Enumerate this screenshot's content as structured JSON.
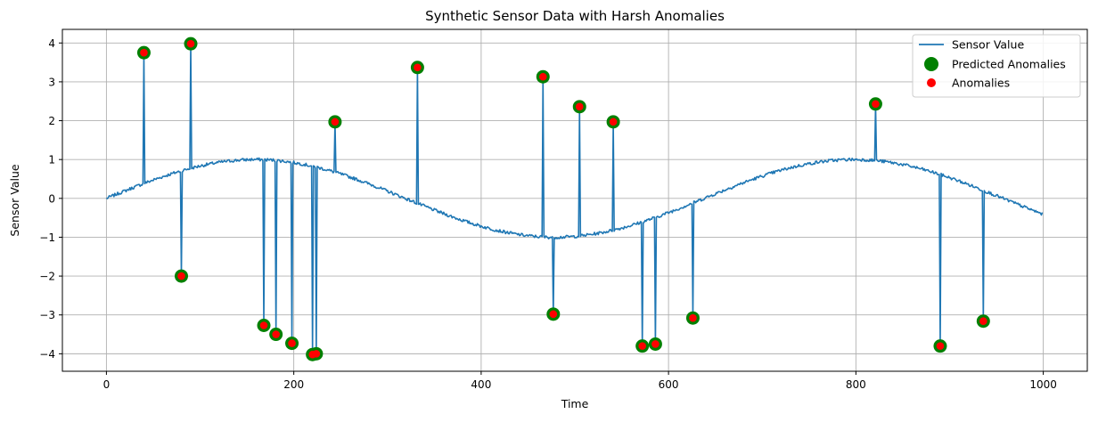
{
  "chart_data": {
    "type": "line",
    "title": "Synthetic Sensor Data with Harsh Anomalies",
    "xlabel": "Time",
    "ylabel": "Sensor Value",
    "xlim": [
      -47,
      1047
    ],
    "ylim": [
      -4.45,
      4.35
    ],
    "xticks": [
      0,
      200,
      400,
      600,
      800,
      1000
    ],
    "yticks": [
      -4,
      -3,
      -2,
      -1,
      0,
      1,
      2,
      3,
      4
    ],
    "grid": true,
    "legend_position": "top-right",
    "colors": {
      "line": "#1f77b4",
      "predicted": "#008000",
      "anomaly": "#ff0000",
      "grid": "#b0b0b0"
    },
    "series": [
      {
        "name": "Sensor Value",
        "kind": "line",
        "baseline": "sinusoid",
        "period": 638,
        "amplitude": 1.0,
        "noise": 0.04,
        "n_points": 1000
      },
      {
        "name": "Predicted Anomalies",
        "kind": "scatter",
        "points": [
          [
            40,
            3.75
          ],
          [
            80,
            -2.0
          ],
          [
            90,
            3.98
          ],
          [
            168,
            -3.27
          ],
          [
            181,
            -3.5
          ],
          [
            198,
            -3.73
          ],
          [
            220,
            -4.02
          ],
          [
            224,
            -4.0
          ],
          [
            244,
            1.97
          ],
          [
            332,
            3.37
          ],
          [
            466,
            3.13
          ],
          [
            477,
            -2.98
          ],
          [
            505,
            2.36
          ],
          [
            541,
            1.97
          ],
          [
            572,
            -3.8
          ],
          [
            586,
            -3.75
          ],
          [
            626,
            -3.08
          ],
          [
            821,
            2.43
          ],
          [
            890,
            -3.8
          ],
          [
            936,
            -3.16
          ]
        ]
      },
      {
        "name": "Anomalies",
        "kind": "scatter",
        "points": [
          [
            40,
            3.75
          ],
          [
            80,
            -2.0
          ],
          [
            90,
            3.98
          ],
          [
            168,
            -3.27
          ],
          [
            181,
            -3.5
          ],
          [
            198,
            -3.73
          ],
          [
            220,
            -4.02
          ],
          [
            224,
            -4.0
          ],
          [
            244,
            1.97
          ],
          [
            332,
            3.37
          ],
          [
            466,
            3.13
          ],
          [
            477,
            -2.98
          ],
          [
            505,
            2.36
          ],
          [
            541,
            1.97
          ],
          [
            572,
            -3.8
          ],
          [
            586,
            -3.75
          ],
          [
            626,
            -3.08
          ],
          [
            821,
            2.43
          ],
          [
            890,
            -3.8
          ],
          [
            936,
            -3.16
          ]
        ]
      }
    ]
  }
}
